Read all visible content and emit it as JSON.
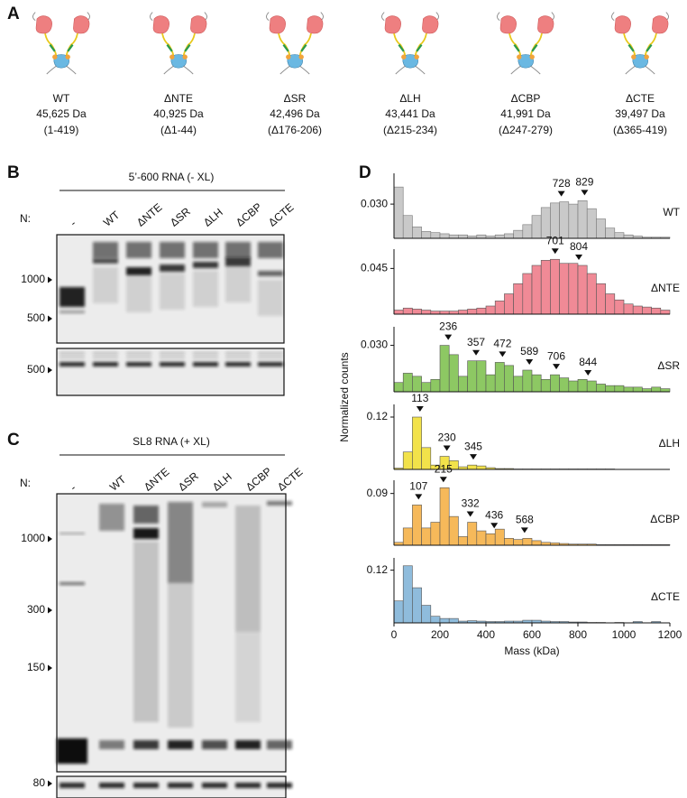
{
  "panel_a": {
    "label": "A",
    "constructs": [
      {
        "name": "WT",
        "mass": "45,625 Da",
        "range": "(1-419)"
      },
      {
        "name": "ΔNTE",
        "mass": "40,925  Da",
        "range": "(Δ1-44)"
      },
      {
        "name": "ΔSR",
        "mass": "42,496 Da",
        "range": "(Δ176-206)"
      },
      {
        "name": "ΔLH",
        "mass": "43,441 Da",
        "range": "(Δ215-234)"
      },
      {
        "name": "ΔCBP",
        "mass": "41,991 Da",
        "range": "(Δ247-279)"
      },
      {
        "name": "ΔCTE",
        "mass": "39,497 Da",
        "range": "(Δ365-419)"
      }
    ]
  },
  "panel_b": {
    "label": "B",
    "title": "5’-600 RNA (- XL)",
    "lane_prefix": "N:",
    "lanes": [
      "-",
      "WT",
      "ΔNTE",
      "ΔSR",
      "ΔLH",
      "ΔCBP",
      "ΔCTE"
    ],
    "markers": [
      "1000",
      "500"
    ],
    "lower_markers": [
      "500"
    ]
  },
  "panel_c": {
    "label": "C",
    "title": "SL8 RNA (+ XL)",
    "lane_prefix": "N:",
    "lanes": [
      "-",
      "WT",
      "ΔNTE",
      "ΔSR",
      "ΔLH",
      "ΔCBP",
      "ΔCTE"
    ],
    "markers": [
      "1000",
      "300",
      "150"
    ],
    "lower_markers": [
      "80"
    ]
  },
  "chart_data": {
    "type": "histogram",
    "panel_label": "D",
    "x_label": "Mass (kDa)",
    "y_label": "Normalized counts",
    "bins": [
      0,
      40,
      80,
      120,
      160,
      200,
      240,
      280,
      320,
      360,
      400,
      440,
      480,
      520,
      560,
      600,
      640,
      680,
      720,
      760,
      800,
      840,
      880,
      920,
      960,
      1000,
      1040,
      1080,
      1120,
      1160,
      1200
    ],
    "xlim": [
      0,
      1200
    ],
    "xticks": [
      0,
      200,
      400,
      600,
      800,
      1000,
      1200
    ],
    "panels": [
      {
        "name": "WT",
        "color": "#c9c9c9",
        "ylim": [
          0,
          0.057
        ],
        "yticks": [
          {
            "value": 0.03,
            "label": "0.030"
          }
        ],
        "peaks": [
          728,
          829
        ],
        "counts": [
          0.045,
          0.02,
          0.01,
          0.006,
          0.005,
          0.004,
          0.003,
          0.003,
          0.002,
          0.003,
          0.002,
          0.003,
          0.004,
          0.007,
          0.012,
          0.02,
          0.027,
          0.031,
          0.032,
          0.03,
          0.033,
          0.026,
          0.017,
          0.009,
          0.005,
          0.003,
          0.002,
          0.001,
          0.001,
          0.001
        ]
      },
      {
        "name": "ΔNTE",
        "color": "#f08a96",
        "ylim": [
          0,
          0.064
        ],
        "yticks": [
          0.045
        ],
        "peaks": [
          701,
          804
        ],
        "counts": [
          0.004,
          0.006,
          0.005,
          0.004,
          0.003,
          0.003,
          0.003,
          0.004,
          0.005,
          0.006,
          0.008,
          0.013,
          0.02,
          0.03,
          0.04,
          0.048,
          0.053,
          0.054,
          0.05,
          0.05,
          0.048,
          0.04,
          0.03,
          0.02,
          0.014,
          0.01,
          0.008,
          0.007,
          0.006,
          0.004
        ]
      },
      {
        "name": "ΔSR",
        "color": "#8dc863",
        "ylim": [
          0,
          0.042
        ],
        "yticks": [
          {
            "value": 0.03,
            "label": "0.030"
          }
        ],
        "peaks": [
          236,
          357,
          472,
          589,
          706,
          844
        ],
        "counts": [
          0.006,
          0.012,
          0.01,
          0.006,
          0.008,
          0.03,
          0.024,
          0.01,
          0.02,
          0.02,
          0.011,
          0.019,
          0.017,
          0.01,
          0.014,
          0.011,
          0.008,
          0.011,
          0.009,
          0.007,
          0.008,
          0.007,
          0.005,
          0.004,
          0.004,
          0.003,
          0.003,
          0.002,
          0.003,
          0.002
        ]
      },
      {
        "name": "ΔLH",
        "color": "#f2e24a",
        "ylim": [
          0,
          0.149
        ],
        "yticks": [
          0.12
        ],
        "peaks": [
          113,
          230,
          345
        ],
        "counts": [
          0.003,
          0.04,
          0.12,
          0.05,
          0.01,
          0.03,
          0.02,
          0.006,
          0.01,
          0.008,
          0.004,
          0.002,
          0.002,
          0.001,
          0.001,
          0.001,
          0.001,
          0.001,
          0.001,
          0.001,
          0.001,
          0.001,
          0.001,
          0.001,
          0,
          0,
          0,
          0,
          0,
          0
        ]
      },
      {
        "name": "ΔCBP",
        "color": "#f6b95a",
        "ylim": [
          0,
          0.113
        ],
        "yticks": [
          0.09
        ],
        "peaks": [
          107,
          215,
          332,
          436,
          568
        ],
        "counts": [
          0.005,
          0.03,
          0.07,
          0.03,
          0.04,
          0.1,
          0.05,
          0.015,
          0.04,
          0.025,
          0.02,
          0.028,
          0.012,
          0.01,
          0.012,
          0.008,
          0.005,
          0.004,
          0.003,
          0.002,
          0.002,
          0.002,
          0.001,
          0.001,
          0.001,
          0.001,
          0.001,
          0.001,
          0.001,
          0.001
        ]
      },
      {
        "name": "ΔCTE",
        "color": "#8fbcdc",
        "ylim": [
          0,
          0.148
        ],
        "yticks": [
          0.12
        ],
        "peaks": [],
        "counts": [
          0.05,
          0.13,
          0.08,
          0.04,
          0.015,
          0.01,
          0.01,
          0.004,
          0.005,
          0.004,
          0.003,
          0.003,
          0.004,
          0.004,
          0.006,
          0.006,
          0.004,
          0.003,
          0.003,
          0.002,
          0.002,
          0.001,
          0.001,
          0,
          0.001,
          0,
          0.003,
          0,
          0.003,
          0
        ]
      }
    ]
  }
}
